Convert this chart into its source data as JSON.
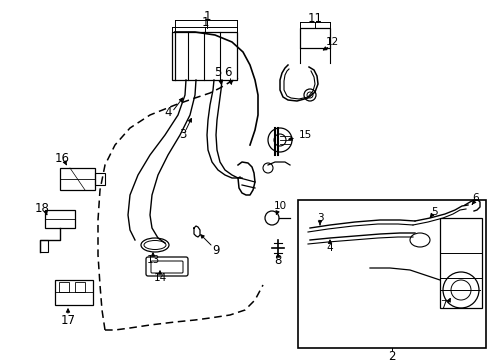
{
  "bg_color": "#ffffff",
  "line_color": "#000000",
  "fig_width": 4.89,
  "fig_height": 3.6,
  "dpi": 100,
  "label_fs": 8.5,
  "small_label_fs": 7.5
}
